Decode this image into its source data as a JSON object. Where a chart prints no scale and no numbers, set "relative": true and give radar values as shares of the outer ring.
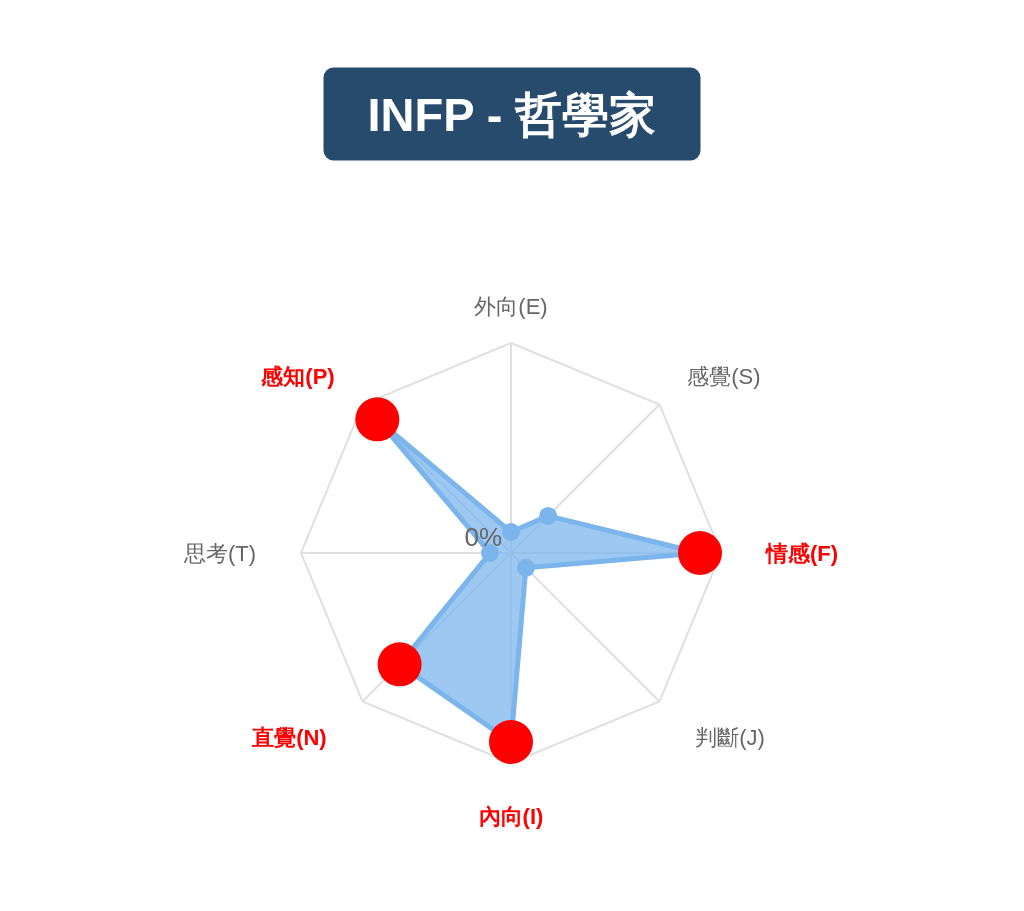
{
  "chart_data": {
    "type": "radar",
    "title": "INFP - 哲學家",
    "categories": [
      "外向(E)",
      "感覺(S)",
      "情感(F)",
      "判斷(J)",
      "內向(I)",
      "直覺(N)",
      "思考(T)",
      "感知(P)"
    ],
    "relative": true,
    "series": [
      {
        "color": "#7cb5ec",
        "values": [
          0.1,
          0.25,
          0.9,
          0.1,
          0.9,
          0.75,
          0.1,
          0.9
        ],
        "colors": [
          "#7cb5ec",
          "#7cb5ec",
          "#ff0000",
          "#7cb5ec",
          "#ff0000",
          "#ff0000",
          "#7cb5ec",
          "#ff0000"
        ]
      }
    ],
    "annotations": [
      "0%"
    ],
    "grid": true,
    "marker": "circle"
  }
}
